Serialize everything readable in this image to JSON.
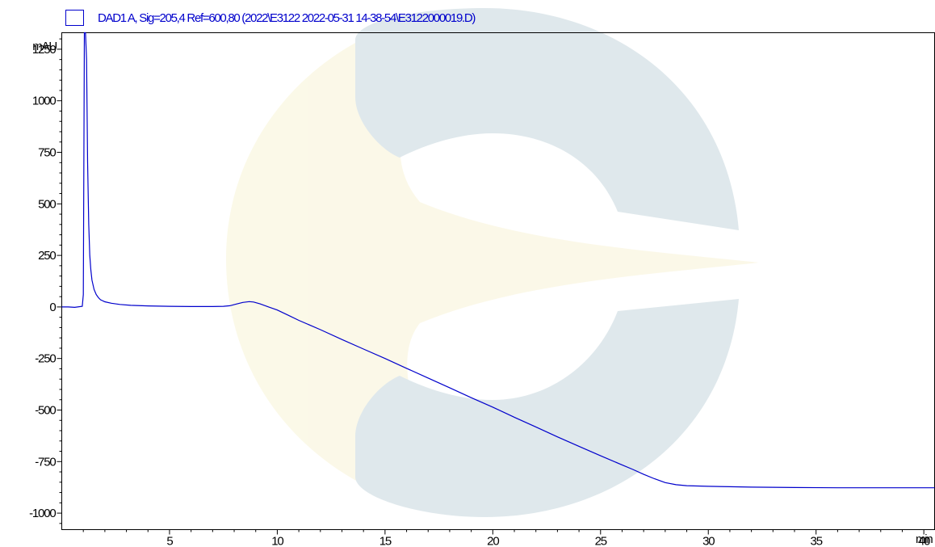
{
  "chart_data": {
    "type": "line",
    "title": "",
    "legend": {
      "label": "DAD1 A, Sig=205,4 Ref=600,80 (2022\\E3122 2022-05-31 14-38-54\\E3122000019.D)",
      "placement": "top-left",
      "color": "#0000cc"
    },
    "ylabel": "mAU",
    "xlabel": "min",
    "xlim": [
      0,
      40.5
    ],
    "ylim": [
      -1080,
      1330
    ],
    "x_ticks": [
      5,
      10,
      15,
      20,
      25,
      30,
      35,
      40
    ],
    "x_tick_labels": [
      "5",
      "10",
      "15",
      "20",
      "25",
      "30",
      "35",
      "40"
    ],
    "y_ticks": [
      1250,
      1000,
      750,
      500,
      250,
      0,
      -250,
      -500,
      -750,
      -1000
    ],
    "y_tick_labels": [
      "1250",
      "1000",
      "750",
      "500",
      "250",
      "0",
      "-250",
      "-500",
      "-750",
      "-1000"
    ],
    "grid": false,
    "series": [
      {
        "color": "#0000cc",
        "x": [
          0,
          0.3,
          0.6,
          0.95,
          1.0,
          1.05,
          1.1,
          1.15,
          1.2,
          1.25,
          1.3,
          1.35,
          1.4,
          1.5,
          1.6,
          1.7,
          1.8,
          2.0,
          2.3,
          2.7,
          3.2,
          4.0,
          5.0,
          6.0,
          7.0,
          7.5,
          7.8,
          8.1,
          8.4,
          8.7,
          8.9,
          9.2,
          9.6,
          10.0,
          10.5,
          11.0,
          12.0,
          13.0,
          14.0,
          15.0,
          16.0,
          17.0,
          18.0,
          19.0,
          20.0,
          21.0,
          22.0,
          23.0,
          24.0,
          25.0,
          26.0,
          26.5,
          27.0,
          27.5,
          28.0,
          28.5,
          29.0,
          30.0,
          31.0,
          32.0,
          34.0,
          36.0,
          38.0,
          40.0,
          40.5
        ],
        "y": [
          0,
          0,
          -2,
          3,
          60,
          1700,
          1700,
          1200,
          700,
          400,
          250,
          180,
          130,
          85,
          60,
          45,
          35,
          25,
          18,
          12,
          8,
          5,
          3,
          2,
          2,
          3,
          6,
          14,
          22,
          26,
          24,
          15,
          0,
          -15,
          -40,
          -65,
          -110,
          -158,
          -204,
          -250,
          -298,
          -345,
          -392,
          -440,
          -486,
          -535,
          -582,
          -630,
          -676,
          -722,
          -766,
          -788,
          -812,
          -833,
          -852,
          -862,
          -867,
          -870,
          -872,
          -874,
          -876,
          -877,
          -877,
          -877,
          -877
        ]
      }
    ]
  }
}
